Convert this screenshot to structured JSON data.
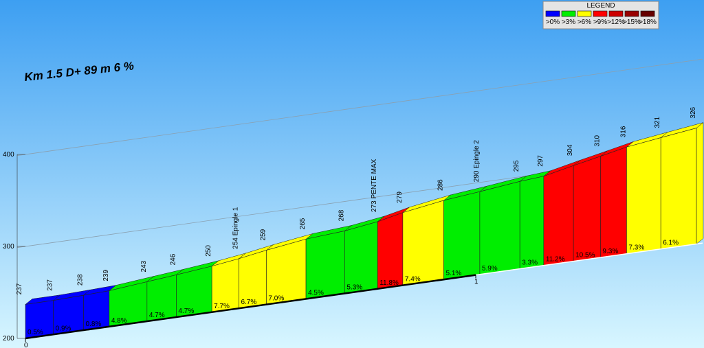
{
  "chart_data": {
    "type": "elevation-profile",
    "title": "Km 1.5 D+ 89 m 6 %",
    "x": [
      0,
      0.062,
      0.129,
      0.186,
      0.27,
      0.335,
      0.414,
      0.474,
      0.535,
      0.623,
      0.709,
      0.782,
      0.838,
      0.929,
      1.009,
      1.098,
      1.151,
      1.217,
      1.277,
      1.335,
      1.411,
      1.49
    ],
    "values": [
      237,
      237,
      238,
      239,
      243,
      246,
      250,
      254,
      259,
      265,
      268,
      273,
      279,
      286,
      290,
      295,
      297,
      304,
      310,
      316,
      321,
      326
    ],
    "value_labels": [
      "237",
      "237",
      "238",
      "239",
      "243",
      "246",
      "250",
      "254 Epingle 1",
      "259",
      "265",
      "268",
      "273 PENTE MAX",
      "279",
      "286",
      "290 Epingle 2",
      "295",
      "297",
      "304",
      "310",
      "316",
      "321",
      "326"
    ],
    "gradients": [
      0.5,
      0.9,
      0.8,
      4.8,
      4.7,
      4.7,
      7.7,
      6.7,
      7.0,
      4.5,
      5.3,
      11.8,
      7.4,
      5.1,
      5.9,
      3.3,
      11.2,
      10.5,
      9.3,
      7.3,
      6.1
    ],
    "gradient_labels": [
      "0.5%",
      "0.9%",
      "0.8%",
      "4.8%",
      "4.7%",
      "4.7%",
      "7.7%",
      "6.7%",
      "7.0%",
      "4.5%",
      "5.3%",
      "11.8%",
      "7.4%",
      "5.1%",
      "5.9%",
      "3.3%",
      "11.2%",
      "10.5%",
      "9.3%",
      "7.3%",
      "6.1%"
    ],
    "colors": [
      "#0000ff",
      "#0000ff",
      "#0000ff",
      "#00ee00",
      "#00ee00",
      "#00ee00",
      "#ffff00",
      "#ffff00",
      "#ffff00",
      "#00ee00",
      "#00ee00",
      "#ff0000",
      "#ffff00",
      "#00ee00",
      "#00ee00",
      "#00ee00",
      "#ff0000",
      "#ff0000",
      "#ff0000",
      "#ffff00",
      "#ffff00"
    ],
    "xlim": [
      0,
      1.5
    ],
    "xticks": [
      0,
      1
    ],
    "ylim": [
      200,
      400
    ],
    "yticks": [
      200,
      300,
      400
    ],
    "grid": true,
    "legend": {
      "title": "LEGEND",
      "items": [
        {
          "label": ">0%",
          "color": "#0000ff"
        },
        {
          "label": ">3%",
          "color": "#00ee00"
        },
        {
          "label": ">6%",
          "color": "#ffff00"
        },
        {
          "label": ">9%",
          "color": "#ff0000"
        },
        {
          "label": ">12%",
          "color": "#cc0000"
        },
        {
          "label": ">15%",
          "color": "#990000"
        },
        {
          "label": ">18%",
          "color": "#660000"
        }
      ]
    }
  }
}
